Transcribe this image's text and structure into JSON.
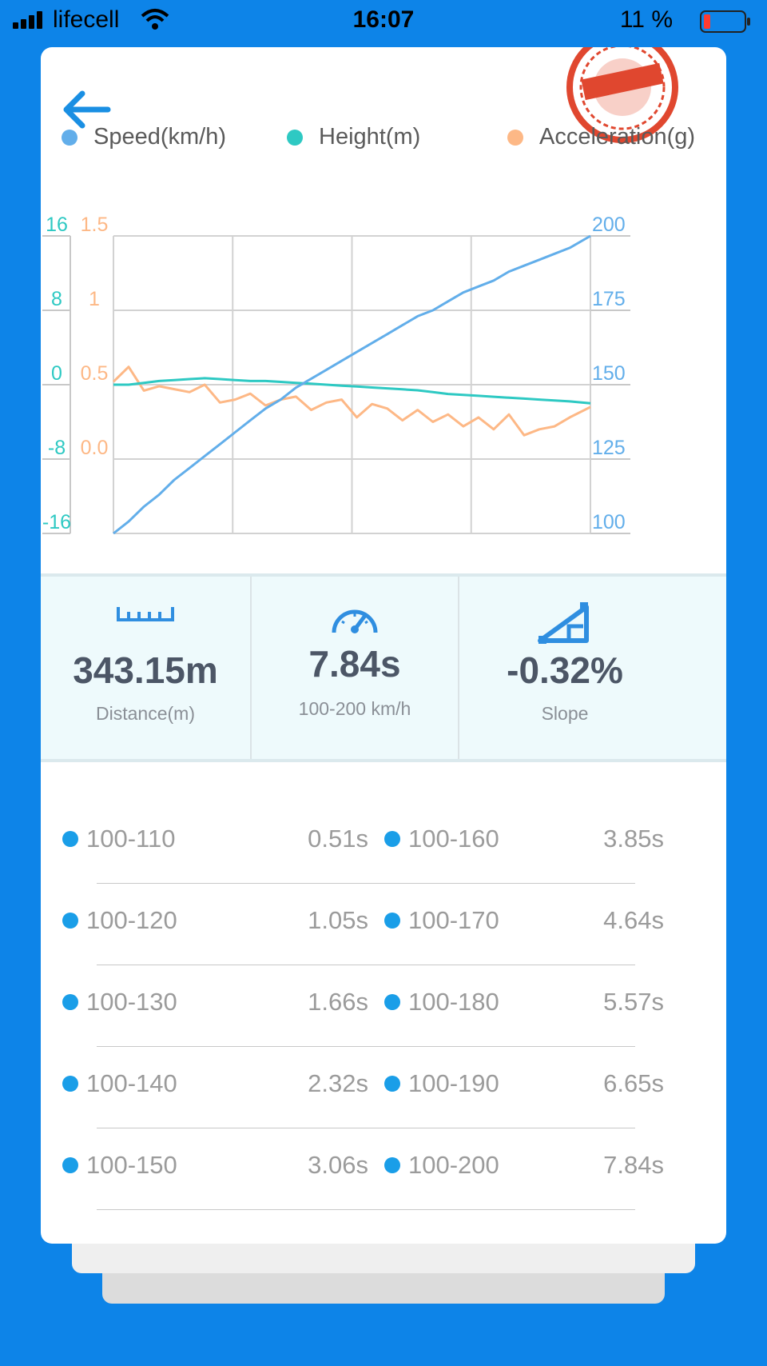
{
  "status_bar": {
    "carrier": "lifecell",
    "time": "16:07",
    "battery_percent": "11 %"
  },
  "legend": [
    {
      "label": "Speed(km/h)",
      "color": "#62aeea"
    },
    {
      "label": "Height(m)",
      "color": "#2ec9c3"
    },
    {
      "label": "Acceleration(g)",
      "color": "#fdb886"
    }
  ],
  "chart_data": {
    "type": "line",
    "height_axis": {
      "ticks": [
        "16",
        "8",
        "0",
        "-8",
        "-16"
      ],
      "ylim": [
        -16,
        16
      ],
      "color": "#2ec9c3"
    },
    "acceleration_axis": {
      "ticks": [
        "1.5",
        "1",
        "0.5",
        "0.0"
      ],
      "ylim": [
        -0.5,
        1.5
      ],
      "color": "#fdb886"
    },
    "speed_axis": {
      "ticks": [
        "200",
        "175",
        "150",
        "125",
        "100"
      ],
      "ylim": [
        100,
        200
      ],
      "color": "#62aeea"
    },
    "grid": true,
    "x": [
      0,
      0.25,
      0.5,
      0.75,
      1,
      1.25,
      1.5,
      1.75,
      2,
      2.25,
      2.5,
      2.75,
      3,
      3.25,
      3.5,
      3.75,
      4,
      4.25,
      4.5,
      4.75,
      5,
      5.25,
      5.5,
      5.75,
      6,
      6.25,
      6.5,
      6.75,
      7,
      7.25,
      7.5,
      7.84
    ],
    "series": [
      {
        "name": "Speed(km/h)",
        "color": "#62aeea",
        "values": [
          100,
          104,
          109,
          113,
          118,
          122,
          126,
          130,
          134,
          138,
          142,
          145,
          149,
          152,
          155,
          158,
          161,
          164,
          167,
          170,
          173,
          175,
          178,
          181,
          183,
          185,
          188,
          190,
          192,
          194,
          196,
          200
        ]
      },
      {
        "name": "Height(m)",
        "color": "#2ec9c3",
        "values": [
          0,
          0,
          0.2,
          0.4,
          0.5,
          0.6,
          0.7,
          0.6,
          0.5,
          0.4,
          0.4,
          0.3,
          0.2,
          0.1,
          0,
          -0.1,
          -0.2,
          -0.3,
          -0.4,
          -0.5,
          -0.6,
          -0.8,
          -1.0,
          -1.1,
          -1.2,
          -1.3,
          -1.4,
          -1.5,
          -1.6,
          -1.7,
          -1.8,
          -2.0
        ]
      },
      {
        "name": "Acceleration(g)",
        "color": "#fdb886",
        "values": [
          0.52,
          0.62,
          0.46,
          0.49,
          0.47,
          0.45,
          0.5,
          0.38,
          0.4,
          0.44,
          0.36,
          0.4,
          0.42,
          0.33,
          0.38,
          0.4,
          0.28,
          0.37,
          0.34,
          0.26,
          0.33,
          0.25,
          0.3,
          0.22,
          0.28,
          0.2,
          0.3,
          0.16,
          0.2,
          0.22,
          0.28,
          0.35
        ]
      }
    ]
  },
  "stats": {
    "distance": {
      "value": "343.15m",
      "label": "Distance(m)"
    },
    "time": {
      "value": "7.84s",
      "label": "100-200 km/h"
    },
    "slope": {
      "value": "-0.32%",
      "label": "Slope"
    }
  },
  "splits": [
    {
      "left": {
        "range": "100-110",
        "time": "0.51s"
      },
      "right": {
        "range": "100-160",
        "time": "3.85s"
      }
    },
    {
      "left": {
        "range": "100-120",
        "time": "1.05s"
      },
      "right": {
        "range": "100-170",
        "time": "4.64s"
      }
    },
    {
      "left": {
        "range": "100-130",
        "time": "1.66s"
      },
      "right": {
        "range": "100-180",
        "time": "5.57s"
      }
    },
    {
      "left": {
        "range": "100-140",
        "time": "2.32s"
      },
      "right": {
        "range": "100-190",
        "time": "6.65s"
      }
    },
    {
      "left": {
        "range": "100-150",
        "time": "3.06s"
      },
      "right": {
        "range": "100-200",
        "time": "7.84s"
      }
    }
  ]
}
